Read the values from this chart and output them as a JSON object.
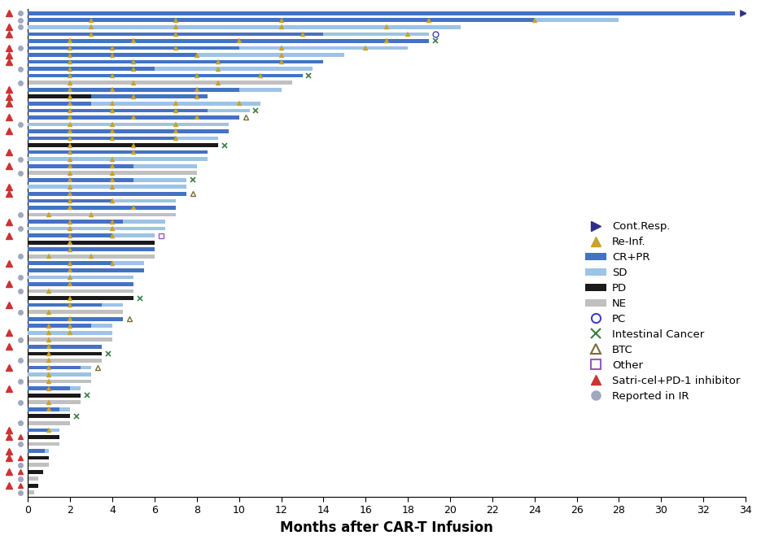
{
  "xlabel": "Months after CAR-T Infusion",
  "xlim": [
    0,
    34
  ],
  "xticks": [
    0,
    2,
    4,
    6,
    8,
    10,
    12,
    14,
    16,
    18,
    20,
    22,
    24,
    26,
    28,
    30,
    32,
    34
  ],
  "colors": {
    "CR_PR": "#4472C4",
    "SD": "#9DC3E6",
    "PD": "#1A1A1A",
    "NE": "#C0C0C0",
    "re_inf": "#C9A227",
    "cont_resp": "#2E2E8B",
    "PC": "#4040C0",
    "intestinal": "#3A7D44",
    "BTC": "#7A6B3A",
    "other": "#9B59B6",
    "satri": "#CC3333",
    "reported_ir": "#A0A8C0"
  },
  "patients": [
    {
      "total": 33.5,
      "crpr": 33.5,
      "sd": 0,
      "pd": 0,
      "ne": 0,
      "cont_resp": true,
      "re_inf": [],
      "left_marker": "reported_ir",
      "right_marker": null,
      "satri_left": true
    },
    {
      "total": 28.0,
      "crpr": 24.0,
      "sd": 4.0,
      "pd": 0,
      "ne": 0,
      "cont_resp": false,
      "re_inf": [
        3,
        7,
        12,
        19,
        24
      ],
      "left_marker": "reported_ir",
      "right_marker": null,
      "satri_left": false
    },
    {
      "total": 20.5,
      "crpr": 0,
      "sd": 20.5,
      "pd": 0,
      "ne": 0,
      "cont_resp": false,
      "re_inf": [
        3,
        7,
        12,
        17
      ],
      "left_marker": "reported_ir",
      "right_marker": null,
      "satri_left": true
    },
    {
      "total": 19.0,
      "crpr": 14.0,
      "sd": 5.0,
      "pd": 0,
      "ne": 0,
      "cont_resp": false,
      "re_inf": [
        3,
        7,
        13,
        18
      ],
      "left_marker": null,
      "right_marker": "PC",
      "satri_left": true
    },
    {
      "total": 19.0,
      "crpr": 19.0,
      "sd": 0,
      "pd": 0,
      "ne": 0,
      "cont_resp": false,
      "re_inf": [
        2,
        5,
        10,
        17
      ],
      "left_marker": null,
      "right_marker": "intestinal",
      "satri_left": false
    },
    {
      "total": 18.0,
      "crpr": 10.0,
      "sd": 8.0,
      "pd": 0,
      "ne": 0,
      "cont_resp": false,
      "re_inf": [
        2,
        4,
        7,
        12,
        16
      ],
      "left_marker": "reported_ir",
      "right_marker": null,
      "satri_left": true
    },
    {
      "total": 15.0,
      "crpr": 8.0,
      "sd": 7.0,
      "pd": 0,
      "ne": 0,
      "cont_resp": false,
      "re_inf": [
        2,
        4,
        8,
        12
      ],
      "left_marker": null,
      "right_marker": null,
      "satri_left": true
    },
    {
      "total": 14.0,
      "crpr": 14.0,
      "sd": 0,
      "pd": 0,
      "ne": 0,
      "cont_resp": false,
      "re_inf": [
        2,
        5,
        9,
        12
      ],
      "left_marker": null,
      "right_marker": null,
      "satri_left": true
    },
    {
      "total": 13.5,
      "crpr": 6.0,
      "sd": 7.5,
      "pd": 0,
      "ne": 0,
      "cont_resp": false,
      "re_inf": [
        2,
        5,
        9
      ],
      "left_marker": "reported_ir",
      "right_marker": null,
      "satri_left": false
    },
    {
      "total": 13.0,
      "crpr": 13.0,
      "sd": 0,
      "pd": 0,
      "ne": 0,
      "cont_resp": false,
      "re_inf": [
        2,
        4,
        8,
        11
      ],
      "left_marker": null,
      "right_marker": "intestinal",
      "satri_left": false
    },
    {
      "total": 12.5,
      "crpr": 0,
      "sd": 0,
      "pd": 0,
      "ne": 12.5,
      "cont_resp": false,
      "re_inf": [
        2,
        5,
        9
      ],
      "left_marker": "reported_ir",
      "right_marker": null,
      "satri_left": false
    },
    {
      "total": 12.0,
      "crpr": 10.0,
      "sd": 2.0,
      "pd": 0,
      "ne": 0,
      "cont_resp": false,
      "re_inf": [
        2,
        4,
        8
      ],
      "left_marker": null,
      "right_marker": null,
      "satri_left": true
    },
    {
      "total": 11.5,
      "crpr": 8.5,
      "sd": 0,
      "pd": 3.0,
      "ne": 0,
      "cont_resp": false,
      "re_inf": [
        2,
        5,
        8
      ],
      "left_marker": null,
      "right_marker": null,
      "satri_left": true
    },
    {
      "total": 11.0,
      "crpr": 3.0,
      "sd": 8.0,
      "pd": 0,
      "ne": 0,
      "cont_resp": false,
      "re_inf": [
        2,
        4,
        7,
        10
      ],
      "left_marker": null,
      "right_marker": null,
      "satri_left": true
    },
    {
      "total": 10.5,
      "crpr": 8.5,
      "sd": 2.0,
      "pd": 0,
      "ne": 0,
      "cont_resp": false,
      "re_inf": [
        2,
        4,
        7
      ],
      "left_marker": null,
      "right_marker": "intestinal",
      "satri_left": false
    },
    {
      "total": 10.0,
      "crpr": 10.0,
      "sd": 0,
      "pd": 0,
      "ne": 0,
      "cont_resp": false,
      "re_inf": [
        2,
        5,
        8
      ],
      "left_marker": null,
      "right_marker": "BTC",
      "satri_left": true
    },
    {
      "total": 9.5,
      "crpr": 0,
      "sd": 9.5,
      "pd": 0,
      "ne": 0,
      "cont_resp": false,
      "re_inf": [
        2,
        4,
        7
      ],
      "left_marker": "reported_ir",
      "right_marker": null,
      "satri_left": false
    },
    {
      "total": 9.5,
      "crpr": 9.5,
      "sd": 0,
      "pd": 0,
      "ne": 0,
      "cont_resp": false,
      "re_inf": [
        2,
        4,
        7
      ],
      "left_marker": null,
      "right_marker": null,
      "satri_left": true
    },
    {
      "total": 9.0,
      "crpr": 7.0,
      "sd": 2.0,
      "pd": 0,
      "ne": 0,
      "cont_resp": false,
      "re_inf": [
        2,
        4,
        7
      ],
      "left_marker": null,
      "right_marker": null,
      "satri_left": false
    },
    {
      "total": 9.0,
      "crpr": 0,
      "sd": 0,
      "pd": 9.0,
      "ne": 0,
      "cont_resp": false,
      "re_inf": [
        2,
        5
      ],
      "left_marker": null,
      "right_marker": "intestinal",
      "satri_left": false
    },
    {
      "total": 8.5,
      "crpr": 8.5,
      "sd": 0,
      "pd": 0,
      "ne": 0,
      "cont_resp": false,
      "re_inf": [
        2,
        5
      ],
      "left_marker": null,
      "right_marker": null,
      "satri_left": true
    },
    {
      "total": 8.5,
      "crpr": 0,
      "sd": 8.5,
      "pd": 0,
      "ne": 0,
      "cont_resp": false,
      "re_inf": [
        2,
        4
      ],
      "left_marker": "reported_ir",
      "right_marker": null,
      "satri_left": false
    },
    {
      "total": 8.0,
      "crpr": 5.0,
      "sd": 3.0,
      "pd": 0,
      "ne": 0,
      "cont_resp": false,
      "re_inf": [
        2,
        4
      ],
      "left_marker": null,
      "right_marker": null,
      "satri_left": true
    },
    {
      "total": 8.0,
      "crpr": 0,
      "sd": 0,
      "pd": 0,
      "ne": 8.0,
      "cont_resp": false,
      "re_inf": [
        2,
        4
      ],
      "left_marker": "reported_ir",
      "right_marker": null,
      "satri_left": false
    },
    {
      "total": 7.5,
      "crpr": 5.0,
      "sd": 2.5,
      "pd": 0,
      "ne": 0,
      "cont_resp": false,
      "re_inf": [
        2,
        4
      ],
      "left_marker": null,
      "right_marker": "intestinal",
      "satri_left": false
    },
    {
      "total": 7.5,
      "crpr": 0,
      "sd": 7.5,
      "pd": 0,
      "ne": 0,
      "cont_resp": false,
      "re_inf": [
        2,
        4
      ],
      "left_marker": null,
      "right_marker": null,
      "satri_left": true
    },
    {
      "total": 7.5,
      "crpr": 7.5,
      "sd": 0,
      "pd": 0,
      "ne": 0,
      "cont_resp": false,
      "re_inf": [
        2
      ],
      "left_marker": null,
      "right_marker": "BTC",
      "satri_left": true
    },
    {
      "total": 7.0,
      "crpr": 4.0,
      "sd": 3.0,
      "pd": 0,
      "ne": 0,
      "cont_resp": false,
      "re_inf": [
        2,
        4
      ],
      "left_marker": null,
      "right_marker": null,
      "satri_left": false
    },
    {
      "total": 7.0,
      "crpr": 7.0,
      "sd": 0,
      "pd": 0,
      "ne": 0,
      "cont_resp": false,
      "re_inf": [
        2,
        5
      ],
      "left_marker": null,
      "right_marker": null,
      "satri_left": false
    },
    {
      "total": 7.0,
      "crpr": 0,
      "sd": 0,
      "pd": 0,
      "ne": 7.0,
      "cont_resp": false,
      "re_inf": [
        1,
        3
      ],
      "left_marker": "reported_ir",
      "right_marker": null,
      "satri_left": false
    },
    {
      "total": 6.5,
      "crpr": 4.5,
      "sd": 2.0,
      "pd": 0,
      "ne": 0,
      "cont_resp": false,
      "re_inf": [
        2,
        4
      ],
      "left_marker": null,
      "right_marker": null,
      "satri_left": true
    },
    {
      "total": 6.5,
      "crpr": 0,
      "sd": 6.5,
      "pd": 0,
      "ne": 0,
      "cont_resp": false,
      "re_inf": [
        2,
        4
      ],
      "left_marker": "reported_ir",
      "right_marker": null,
      "satri_left": false
    },
    {
      "total": 6.0,
      "crpr": 4.0,
      "sd": 2.0,
      "pd": 0,
      "ne": 0,
      "cont_resp": false,
      "re_inf": [
        2,
        4
      ],
      "left_marker": null,
      "right_marker": "other",
      "satri_left": true
    },
    {
      "total": 6.0,
      "crpr": 0,
      "sd": 0,
      "pd": 6.0,
      "ne": 0,
      "cont_resp": false,
      "re_inf": [
        2
      ],
      "left_marker": null,
      "right_marker": null,
      "satri_left": false
    },
    {
      "total": 6.0,
      "crpr": 6.0,
      "sd": 0,
      "pd": 0,
      "ne": 0,
      "cont_resp": false,
      "re_inf": [
        2
      ],
      "left_marker": null,
      "right_marker": null,
      "satri_left": false
    },
    {
      "total": 6.0,
      "crpr": 0,
      "sd": 0,
      "pd": 0,
      "ne": 6.0,
      "cont_resp": false,
      "re_inf": [
        1,
        3
      ],
      "left_marker": "reported_ir",
      "right_marker": null,
      "satri_left": false
    },
    {
      "total": 5.5,
      "crpr": 4.0,
      "sd": 1.5,
      "pd": 0,
      "ne": 0,
      "cont_resp": false,
      "re_inf": [
        2,
        4
      ],
      "left_marker": null,
      "right_marker": null,
      "satri_left": true
    },
    {
      "total": 5.5,
      "crpr": 5.5,
      "sd": 0,
      "pd": 0,
      "ne": 0,
      "cont_resp": false,
      "re_inf": [
        2
      ],
      "left_marker": null,
      "right_marker": null,
      "satri_left": false
    },
    {
      "total": 5.0,
      "crpr": 0,
      "sd": 5.0,
      "pd": 0,
      "ne": 0,
      "cont_resp": false,
      "re_inf": [
        2
      ],
      "left_marker": "reported_ir",
      "right_marker": null,
      "satri_left": false
    },
    {
      "total": 5.0,
      "crpr": 5.0,
      "sd": 0,
      "pd": 0,
      "ne": 0,
      "cont_resp": false,
      "re_inf": [
        2
      ],
      "left_marker": null,
      "right_marker": null,
      "satri_left": true
    },
    {
      "total": 5.0,
      "crpr": 0,
      "sd": 0,
      "pd": 0,
      "ne": 5.0,
      "cont_resp": false,
      "re_inf": [
        1
      ],
      "left_marker": "reported_ir",
      "right_marker": null,
      "satri_left": false
    },
    {
      "total": 5.0,
      "crpr": 0,
      "sd": 0,
      "pd": 5.0,
      "ne": 0,
      "cont_resp": false,
      "re_inf": [
        2
      ],
      "left_marker": null,
      "right_marker": "intestinal",
      "satri_left": false
    },
    {
      "total": 4.5,
      "crpr": 3.5,
      "sd": 1.0,
      "pd": 0,
      "ne": 0,
      "cont_resp": false,
      "re_inf": [
        2
      ],
      "left_marker": null,
      "right_marker": null,
      "satri_left": true
    },
    {
      "total": 4.5,
      "crpr": 0,
      "sd": 0,
      "pd": 0,
      "ne": 4.5,
      "cont_resp": false,
      "re_inf": [
        1
      ],
      "left_marker": "reported_ir",
      "right_marker": null,
      "satri_left": false
    },
    {
      "total": 4.5,
      "crpr": 4.5,
      "sd": 0,
      "pd": 0,
      "ne": 0,
      "cont_resp": false,
      "re_inf": [
        2
      ],
      "left_marker": null,
      "right_marker": "BTC",
      "satri_left": false
    },
    {
      "total": 4.0,
      "crpr": 3.0,
      "sd": 1.0,
      "pd": 0,
      "ne": 0,
      "cont_resp": false,
      "re_inf": [
        1,
        2
      ],
      "left_marker": null,
      "right_marker": null,
      "satri_left": false
    },
    {
      "total": 4.0,
      "crpr": 0,
      "sd": 4.0,
      "pd": 0,
      "ne": 0,
      "cont_resp": false,
      "re_inf": [
        1,
        2
      ],
      "left_marker": null,
      "right_marker": null,
      "satri_left": true
    },
    {
      "total": 4.0,
      "crpr": 0,
      "sd": 0,
      "pd": 0,
      "ne": 4.0,
      "cont_resp": false,
      "re_inf": [
        1
      ],
      "left_marker": "reported_ir",
      "right_marker": null,
      "satri_left": false
    },
    {
      "total": 3.5,
      "crpr": 3.5,
      "sd": 0,
      "pd": 0,
      "ne": 0,
      "cont_resp": false,
      "re_inf": [
        1
      ],
      "left_marker": null,
      "right_marker": null,
      "satri_left": true
    },
    {
      "total": 3.5,
      "crpr": 0,
      "sd": 0,
      "pd": 3.5,
      "ne": 0,
      "cont_resp": false,
      "re_inf": [
        1
      ],
      "left_marker": null,
      "right_marker": "intestinal",
      "satri_left": false
    },
    {
      "total": 3.5,
      "crpr": 0,
      "sd": 0,
      "pd": 0,
      "ne": 3.5,
      "cont_resp": false,
      "re_inf": [
        1
      ],
      "left_marker": "reported_ir",
      "right_marker": null,
      "satri_left": false
    },
    {
      "total": 3.0,
      "crpr": 2.5,
      "sd": 0.5,
      "pd": 0,
      "ne": 0,
      "cont_resp": false,
      "re_inf": [
        1
      ],
      "left_marker": null,
      "right_marker": "BTC",
      "satri_left": true
    },
    {
      "total": 3.0,
      "crpr": 0,
      "sd": 3.0,
      "pd": 0,
      "ne": 0,
      "cont_resp": false,
      "re_inf": [
        1
      ],
      "left_marker": null,
      "right_marker": null,
      "satri_left": false
    },
    {
      "total": 3.0,
      "crpr": 0,
      "sd": 0,
      "pd": 0,
      "ne": 3.0,
      "cont_resp": false,
      "re_inf": [
        1
      ],
      "left_marker": "reported_ir",
      "right_marker": null,
      "satri_left": false
    },
    {
      "total": 2.5,
      "crpr": 2.0,
      "sd": 0.5,
      "pd": 0,
      "ne": 0,
      "cont_resp": false,
      "re_inf": [
        1
      ],
      "left_marker": null,
      "right_marker": null,
      "satri_left": true
    },
    {
      "total": 2.5,
      "crpr": 0,
      "sd": 0,
      "pd": 2.5,
      "ne": 0,
      "cont_resp": false,
      "re_inf": [],
      "left_marker": null,
      "right_marker": "intestinal",
      "satri_left": false
    },
    {
      "total": 2.5,
      "crpr": 0,
      "sd": 0,
      "pd": 0,
      "ne": 2.5,
      "cont_resp": false,
      "re_inf": [
        1
      ],
      "left_marker": "reported_ir",
      "right_marker": null,
      "satri_left": false
    },
    {
      "total": 2.0,
      "crpr": 1.5,
      "sd": 0.5,
      "pd": 0,
      "ne": 0,
      "cont_resp": false,
      "re_inf": [
        1
      ],
      "left_marker": null,
      "right_marker": null,
      "satri_left": false
    },
    {
      "total": 2.0,
      "crpr": 0,
      "sd": 0,
      "pd": 2.0,
      "ne": 0,
      "cont_resp": false,
      "re_inf": [],
      "left_marker": null,
      "right_marker": "intestinal",
      "satri_left": false
    },
    {
      "total": 2.0,
      "crpr": 0,
      "sd": 0,
      "pd": 0,
      "ne": 2.0,
      "cont_resp": false,
      "re_inf": [],
      "left_marker": "reported_ir",
      "right_marker": null,
      "satri_left": false
    },
    {
      "total": 1.5,
      "crpr": 1.0,
      "sd": 0.5,
      "pd": 0,
      "ne": 0,
      "cont_resp": false,
      "re_inf": [
        1
      ],
      "left_marker": null,
      "right_marker": null,
      "satri_left": true
    },
    {
      "total": 1.5,
      "crpr": 0,
      "sd": 0,
      "pd": 1.5,
      "ne": 0,
      "cont_resp": false,
      "re_inf": [],
      "left_marker": "satri",
      "right_marker": null,
      "satri_left": true
    },
    {
      "total": 1.5,
      "crpr": 0,
      "sd": 0,
      "pd": 0,
      "ne": 1.5,
      "cont_resp": false,
      "re_inf": [],
      "left_marker": "reported_ir",
      "right_marker": null,
      "satri_left": false
    },
    {
      "total": 1.0,
      "crpr": 0.8,
      "sd": 0.2,
      "pd": 0,
      "ne": 0,
      "cont_resp": false,
      "re_inf": [],
      "left_marker": null,
      "right_marker": null,
      "satri_left": true
    },
    {
      "total": 1.0,
      "crpr": 0,
      "sd": 0,
      "pd": 1.0,
      "ne": 0,
      "cont_resp": false,
      "re_inf": [],
      "left_marker": "satri",
      "right_marker": null,
      "satri_left": true
    },
    {
      "total": 1.0,
      "crpr": 0,
      "sd": 0,
      "pd": 0,
      "ne": 1.0,
      "cont_resp": false,
      "re_inf": [],
      "left_marker": "reported_ir",
      "right_marker": null,
      "satri_left": false
    },
    {
      "total": 0.7,
      "crpr": 0,
      "sd": 0,
      "pd": 0.7,
      "ne": 0,
      "cont_resp": false,
      "re_inf": [],
      "left_marker": "satri",
      "right_marker": null,
      "satri_left": true
    },
    {
      "total": 0.5,
      "crpr": 0,
      "sd": 0,
      "pd": 0,
      "ne": 0.5,
      "cont_resp": false,
      "re_inf": [],
      "left_marker": "reported_ir",
      "right_marker": null,
      "satri_left": false
    },
    {
      "total": 0.5,
      "crpr": 0,
      "sd": 0,
      "pd": 0.5,
      "ne": 0,
      "cont_resp": false,
      "re_inf": [],
      "left_marker": "satri",
      "right_marker": null,
      "satri_left": true
    },
    {
      "total": 0.3,
      "crpr": 0,
      "sd": 0,
      "pd": 0,
      "ne": 0.3,
      "cont_resp": false,
      "re_inf": [],
      "left_marker": "reported_ir",
      "right_marker": null,
      "satri_left": false
    }
  ]
}
